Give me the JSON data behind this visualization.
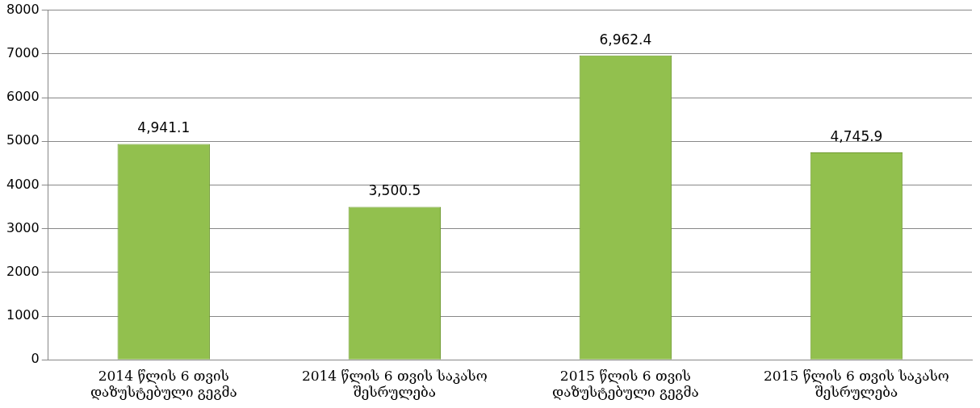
{
  "chart_data": {
    "type": "bar",
    "categories": [
      "2014 წლის 6 თვის დაზუსტებული გეგმა",
      "2014 წლის 6 თვის საკასო შესრულება",
      "2015 წლის 6 თვის დაზუსტებული გეგმა",
      "2015 წლის 6 თვის საკასო შესრულება"
    ],
    "values": [
      4941.1,
      3500.5,
      6962.4,
      4745.9
    ],
    "value_labels": [
      "4,941.1",
      "3,500.5",
      "6,962.4",
      "4,745.9"
    ],
    "color": "#92c04e",
    "ylim": [
      0,
      8000
    ],
    "yticks": [
      0,
      1000,
      2000,
      3000,
      4000,
      5000,
      6000,
      7000,
      8000
    ],
    "grid": "y",
    "legend": false
  }
}
